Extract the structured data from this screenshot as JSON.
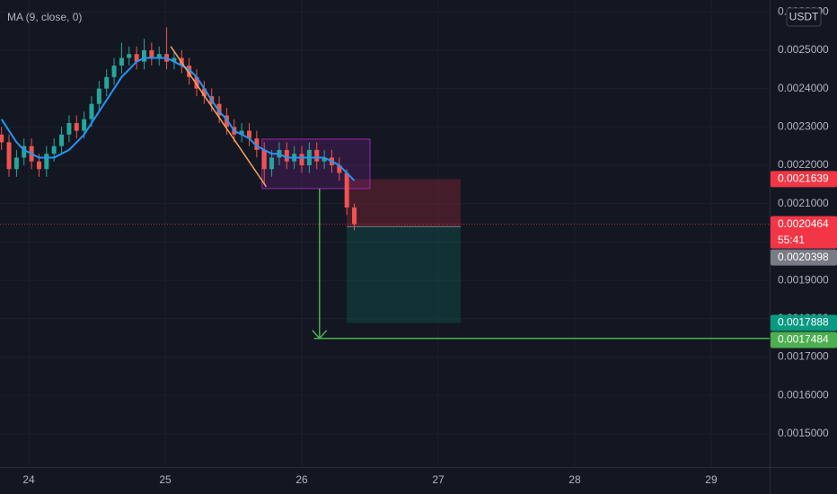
{
  "chart_data": {
    "type": "candlestick",
    "indicator_label": "MA (9, close, 0)",
    "currency": "USDT",
    "countdown": "55:41",
    "up_color": "#26a69a",
    "down_color": "#ef5350",
    "ma_color": "#2196f3",
    "xlim": [
      23.789,
      29.428
    ],
    "xticks": [
      24,
      25,
      26,
      27,
      28,
      29
    ],
    "ylim": [
      0.001413,
      0.002631
    ],
    "yticks": [
      {
        "value": 0.0015,
        "label": "0.0015000"
      },
      {
        "value": 0.0016,
        "label": "0.0016000"
      },
      {
        "value": 0.0017,
        "label": "0.0017000"
      },
      {
        "value": 0.0018,
        "label": "0.0018000"
      },
      {
        "value": 0.0019,
        "label": "0.0019000"
      },
      {
        "value": 0.002,
        "label": "0.0020000"
      },
      {
        "value": 0.0021,
        "label": "0.0021000"
      },
      {
        "value": 0.0022,
        "label": "0.0022000"
      },
      {
        "value": 0.0023,
        "label": "0.0023000"
      },
      {
        "value": 0.0024,
        "label": "0.0024000"
      },
      {
        "value": 0.0025,
        "label": "0.0025000"
      },
      {
        "value": 0.0026,
        "label": "0.0026000"
      }
    ],
    "grid": true,
    "x": [
      23.8,
      23.855,
      23.91,
      23.965,
      24.02,
      24.075,
      24.13,
      24.185,
      24.24,
      24.295,
      24.35,
      24.405,
      24.46,
      24.515,
      24.57,
      24.625,
      24.68,
      24.735,
      24.79,
      24.845,
      24.9,
      24.955,
      25.01,
      25.065,
      25.12,
      25.175,
      25.23,
      25.285,
      25.34,
      25.395,
      25.45,
      25.505,
      25.56,
      25.615,
      25.67,
      25.725,
      25.78,
      25.835,
      25.89,
      25.945,
      26.0,
      26.055,
      26.11,
      26.165,
      26.22,
      26.275,
      26.33,
      26.385
    ],
    "open": [
      0.00228,
      0.00226,
      0.00219,
      0.00222,
      0.00225,
      0.00221,
      0.00219,
      0.00223,
      0.00225,
      0.00228,
      0.00231,
      0.00229,
      0.00232,
      0.00236,
      0.0024,
      0.00243,
      0.00246,
      0.00248,
      0.00249,
      0.00247,
      0.0025,
      0.00248,
      0.00249,
      0.00247,
      0.00248,
      0.00246,
      0.00243,
      0.0024,
      0.00238,
      0.00236,
      0.00233,
      0.0023,
      0.00228,
      0.00229,
      0.00227,
      0.00224,
      0.00219,
      0.00222,
      0.00224,
      0.00221,
      0.00223,
      0.0022,
      0.00224,
      0.00221,
      0.00222,
      0.0022,
      0.00218,
      0.00209
    ],
    "high": [
      0.0023,
      0.00228,
      0.00224,
      0.00227,
      0.00227,
      0.00223,
      0.00225,
      0.00227,
      0.0023,
      0.00233,
      0.00233,
      0.00234,
      0.00238,
      0.00242,
      0.00245,
      0.00248,
      0.00252,
      0.00251,
      0.00251,
      0.00253,
      0.00252,
      0.00251,
      0.00256,
      0.0025,
      0.0025,
      0.00248,
      0.00245,
      0.00242,
      0.0024,
      0.00238,
      0.00235,
      0.00232,
      0.00231,
      0.00231,
      0.00229,
      0.00226,
      0.00224,
      0.00226,
      0.00226,
      0.00225,
      0.00225,
      0.00226,
      0.00226,
      0.00224,
      0.00224,
      0.00222,
      0.00219,
      0.0021
    ],
    "low": [
      0.00224,
      0.00217,
      0.00217,
      0.0022,
      0.00219,
      0.00217,
      0.00217,
      0.00221,
      0.00223,
      0.00226,
      0.00227,
      0.00227,
      0.0023,
      0.00234,
      0.00238,
      0.00241,
      0.00244,
      0.00246,
      0.00245,
      0.00245,
      0.00246,
      0.00246,
      0.00245,
      0.00245,
      0.00244,
      0.00241,
      0.00238,
      0.00236,
      0.00234,
      0.00231,
      0.00228,
      0.00226,
      0.00226,
      0.00225,
      0.00222,
      0.00215,
      0.00217,
      0.0022,
      0.00219,
      0.00219,
      0.00218,
      0.00218,
      0.00219,
      0.00219,
      0.00218,
      0.00216,
      0.00207,
      0.00203
    ],
    "close": [
      0.00226,
      0.00219,
      0.00222,
      0.00225,
      0.00221,
      0.00219,
      0.00223,
      0.00225,
      0.00228,
      0.00231,
      0.00229,
      0.00232,
      0.00236,
      0.0024,
      0.00243,
      0.00246,
      0.00248,
      0.00249,
      0.00247,
      0.0025,
      0.00248,
      0.00249,
      0.00247,
      0.00248,
      0.00246,
      0.00243,
      0.0024,
      0.00238,
      0.00236,
      0.00233,
      0.0023,
      0.00228,
      0.00229,
      0.00227,
      0.00224,
      0.00219,
      0.00222,
      0.00224,
      0.00221,
      0.00223,
      0.0022,
      0.00224,
      0.00221,
      0.00222,
      0.0022,
      0.00218,
      0.00209,
      0.0020464
    ],
    "ma": [
      0.00232,
      0.00229,
      0.00226,
      0.00224,
      0.00223,
      0.00222,
      0.00222,
      0.00222,
      0.00223,
      0.00224,
      0.00226,
      0.00228,
      0.00231,
      0.00234,
      0.00237,
      0.0024,
      0.00243,
      0.00245,
      0.00247,
      0.00248,
      0.00248,
      0.00248,
      0.00248,
      0.00247,
      0.00246,
      0.00245,
      0.00243,
      0.0024,
      0.00237,
      0.00234,
      0.00232,
      0.00229,
      0.00228,
      0.00227,
      0.00225,
      0.00224,
      0.00223,
      0.00223,
      0.00222,
      0.00222,
      0.00222,
      0.00222,
      0.00222,
      0.00222,
      0.00221,
      0.0022,
      0.00218,
      0.00216
    ],
    "price_markers": [
      {
        "value": 0.0021639,
        "color": "#f23645",
        "role": "stop"
      },
      {
        "value": 0.0020464,
        "color": "#f23645",
        "role": "last"
      },
      {
        "value": 0.0020398,
        "color": "#787b86",
        "role": "entry"
      },
      {
        "value": 0.0017888,
        "color": "#089981",
        "role": "target"
      },
      {
        "value": 0.0017484,
        "color": "#4caf50",
        "role": "line"
      }
    ],
    "drawings": {
      "trendline": {
        "x": [
          25.04,
          25.74
        ],
        "y": [
          0.00251,
          0.002144
        ],
        "color": "#f7a35c"
      },
      "range_box": {
        "x": [
          25.709,
          26.5
        ],
        "y": [
          0.0022681,
          0.0021393
        ],
        "color": "#9c27b0"
      },
      "position_box": {
        "x": [
          26.329,
          27.164
        ]
      },
      "arrow": {
        "x": 26.13,
        "from": 0.0021393,
        "line_start": 26.09
      }
    }
  }
}
